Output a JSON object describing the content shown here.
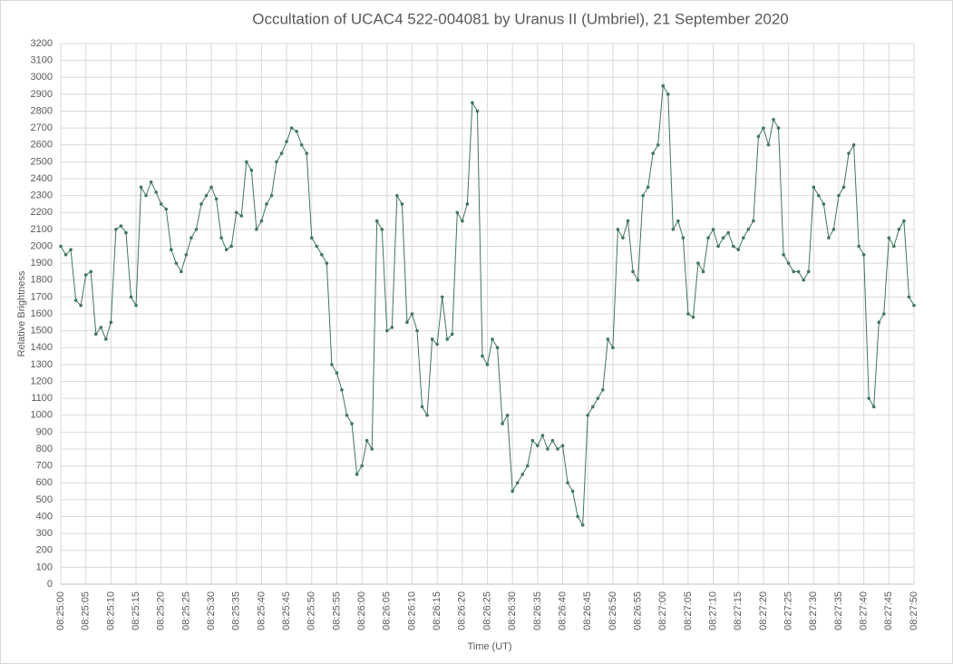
{
  "chart_data": {
    "type": "line",
    "title": "Occultation of UCAC4 522-004081 by Uranus II (Umbriel), 21 September 2020",
    "xlabel": "Time (UT)",
    "ylabel": "Relative Brightness",
    "grid": true,
    "x": [
      30300,
      30301,
      30302,
      30303,
      30304,
      30305,
      30306,
      30307,
      30308,
      30309,
      30310,
      30311,
      30312,
      30313,
      30314,
      30315,
      30316,
      30317,
      30318,
      30319,
      30320,
      30321,
      30322,
      30323,
      30324,
      30325,
      30326,
      30327,
      30328,
      30329,
      30330,
      30331,
      30332,
      30333,
      30334,
      30335,
      30336,
      30337,
      30338,
      30339,
      30340,
      30341,
      30342,
      30343,
      30344,
      30345,
      30346,
      30347,
      30348,
      30349,
      30350,
      30351,
      30352,
      30353,
      30354,
      30355,
      30356,
      30357,
      30358,
      30359,
      30360,
      30361,
      30362,
      30363,
      30364,
      30365,
      30366,
      30367,
      30368,
      30369,
      30370,
      30371,
      30372,
      30373,
      30374,
      30375,
      30376,
      30377,
      30378,
      30379,
      30380,
      30381,
      30382,
      30383,
      30384,
      30385,
      30386,
      30387,
      30388,
      30389,
      30390,
      30391,
      30392,
      30393,
      30394,
      30395,
      30396,
      30397,
      30398,
      30399,
      30400,
      30401,
      30402,
      30403,
      30404,
      30405,
      30406,
      30407,
      30408,
      30409,
      30410,
      30411,
      30412,
      30413,
      30414,
      30415,
      30416,
      30417,
      30418,
      30419,
      30420,
      30421,
      30422,
      30423,
      30424,
      30425,
      30426,
      30427,
      30428,
      30429,
      30430,
      30431,
      30432,
      30433,
      30434,
      30435,
      30436,
      30437,
      30438,
      30439,
      30440,
      30441,
      30442,
      30443,
      30444,
      30445,
      30446,
      30447,
      30448,
      30449,
      30450,
      30451,
      30452,
      30453,
      30454,
      30455,
      30456,
      30457,
      30458,
      30459,
      30460,
      30461,
      30462,
      30463,
      30464,
      30465,
      30466,
      30467,
      30468,
      30469,
      30470
    ],
    "series": [
      {
        "color": "#41775e",
        "values": [
          2000,
          1950,
          1980,
          1680,
          1650,
          1830,
          1850,
          1480,
          1520,
          1450,
          1550,
          2100,
          2120,
          2080,
          1700,
          1650,
          2350,
          2300,
          2380,
          2320,
          2250,
          2220,
          1980,
          1900,
          1850,
          1950,
          2050,
          2100,
          2250,
          2300,
          2350,
          2280,
          2050,
          1980,
          2000,
          2200,
          2180,
          2500,
          2450,
          2100,
          2150,
          2250,
          2300,
          2500,
          2550,
          2620,
          2700,
          2680,
          2600,
          2550,
          2050,
          2000,
          1950,
          1900,
          1300,
          1250,
          1150,
          1000,
          950,
          650,
          700,
          850,
          800,
          2150,
          2100,
          1500,
          1520,
          2300,
          2250,
          1550,
          1600,
          1500,
          1050,
          1000,
          1450,
          1420,
          1700,
          1450,
          1480,
          2200,
          2150,
          2250,
          2850,
          2800,
          1350,
          1300,
          1450,
          1400,
          950,
          1000,
          550,
          600,
          650,
          700,
          850,
          820,
          880,
          800,
          850,
          800,
          820,
          600,
          550,
          400,
          350,
          1000,
          1050,
          1100,
          1150,
          1450,
          1400,
          2100,
          2050,
          2150,
          1850,
          1800,
          2300,
          2350,
          2550,
          2600,
          2950,
          2900,
          2100,
          2150,
          2050,
          1600,
          1580,
          1900,
          1850,
          2050,
          2100,
          2000,
          2050,
          2080,
          2000,
          1980,
          2050,
          2100,
          2150,
          2650,
          2700,
          2600,
          2750,
          2700,
          1950,
          1900,
          1850,
          1850,
          1800,
          1850,
          2350,
          2300,
          2250,
          2050,
          2100,
          2300,
          2350,
          2550,
          2600,
          2000,
          1950,
          1100,
          1050,
          1550,
          1600,
          2050,
          2000,
          2100,
          2150,
          1700,
          1650
        ]
      }
    ],
    "xlim": [
      30300,
      30470
    ],
    "xticks": [
      {
        "value": 30300,
        "label": "08:25:00"
      },
      {
        "value": 30305,
        "label": "08:25:05"
      },
      {
        "value": 30310,
        "label": "08:25:10"
      },
      {
        "value": 30315,
        "label": "08:25:15"
      },
      {
        "value": 30320,
        "label": "08:25:20"
      },
      {
        "value": 30325,
        "label": "08:25:25"
      },
      {
        "value": 30330,
        "label": "08:25:30"
      },
      {
        "value": 30335,
        "label": "08:25:35"
      },
      {
        "value": 30340,
        "label": "08:25:40"
      },
      {
        "value": 30345,
        "label": "08:25:45"
      },
      {
        "value": 30350,
        "label": "08:25:50"
      },
      {
        "value": 30355,
        "label": "08:25:55"
      },
      {
        "value": 30360,
        "label": "08:26:00"
      },
      {
        "value": 30365,
        "label": "08:26:05"
      },
      {
        "value": 30370,
        "label": "08:26:10"
      },
      {
        "value": 30375,
        "label": "08:26:15"
      },
      {
        "value": 30380,
        "label": "08:26:20"
      },
      {
        "value": 30385,
        "label": "08:26:25"
      },
      {
        "value": 30390,
        "label": "08:26:30"
      },
      {
        "value": 30395,
        "label": "08:26:35"
      },
      {
        "value": 30400,
        "label": "08:26:40"
      },
      {
        "value": 30405,
        "label": "08:26:45"
      },
      {
        "value": 30410,
        "label": "08:26:50"
      },
      {
        "value": 30415,
        "label": "08:26:55"
      },
      {
        "value": 30420,
        "label": "08:27:00"
      },
      {
        "value": 30425,
        "label": "08:27:05"
      },
      {
        "value": 30430,
        "label": "08:27:10"
      },
      {
        "value": 30435,
        "label": "08:27:15"
      },
      {
        "value": 30440,
        "label": "08:27:20"
      },
      {
        "value": 30445,
        "label": "08:27:25"
      },
      {
        "value": 30450,
        "label": "08:27:30"
      },
      {
        "value": 30455,
        "label": "08:27:35"
      },
      {
        "value": 30460,
        "label": "08:27:40"
      },
      {
        "value": 30465,
        "label": "08:27:45"
      },
      {
        "value": 30470,
        "label": "08:27:50"
      }
    ],
    "ylim": [
      0,
      3200
    ],
    "yticks": [
      0,
      100,
      200,
      300,
      400,
      500,
      600,
      700,
      800,
      900,
      1000,
      1100,
      1200,
      1300,
      1400,
      1500,
      1600,
      1700,
      1800,
      1900,
      2000,
      2100,
      2200,
      2300,
      2400,
      2500,
      2600,
      2700,
      2800,
      2900,
      3000,
      3100,
      3200
    ]
  }
}
